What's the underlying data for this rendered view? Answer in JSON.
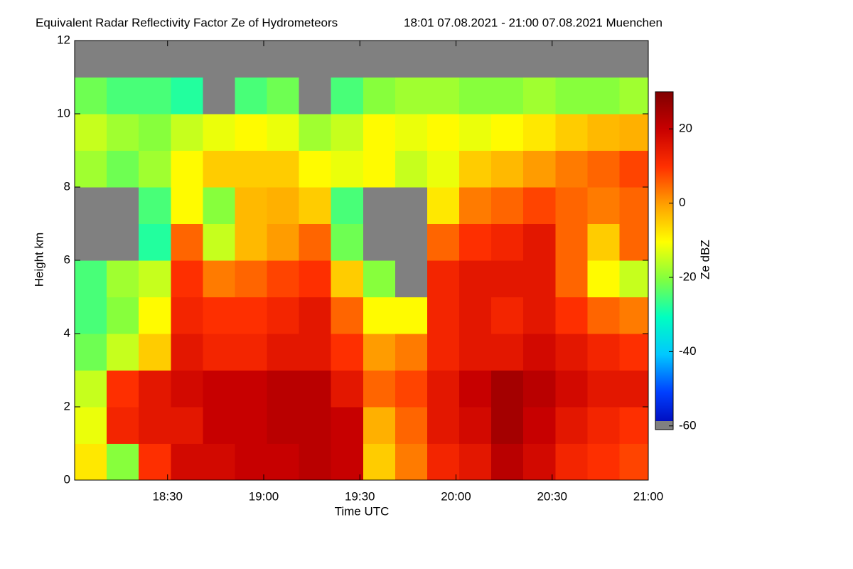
{
  "chart_data": {
    "type": "heatmap",
    "title": "Equivalent Radar Reflectivity Factor Ze of Hydrometeors",
    "subtitle": "18:01 07.08.2021 - 21:00 07.08.2021 Muenchen",
    "xlabel": "Time UTC",
    "ylabel": "Height km",
    "colorbar_label": "Ze dBZ",
    "xlim": [
      1081,
      1260
    ],
    "xticks": [
      {
        "value": 1110,
        "label": "18:30"
      },
      {
        "value": 1140,
        "label": "19:00"
      },
      {
        "value": 1170,
        "label": "19:30"
      },
      {
        "value": 1200,
        "label": "20:00"
      },
      {
        "value": 1230,
        "label": "20:30"
      },
      {
        "value": 1260,
        "label": "21:00"
      }
    ],
    "ylim": [
      0,
      12
    ],
    "yticks": [
      0,
      2,
      4,
      6,
      8,
      10,
      12
    ],
    "zlim": [
      -61,
      30
    ],
    "zticks": [
      -60,
      -40,
      -20,
      0,
      20
    ],
    "x": [
      1086,
      1096,
      1106,
      1116,
      1126,
      1136,
      1146,
      1156,
      1166,
      1176,
      1186,
      1196,
      1206,
      1216,
      1226,
      1236,
      1246,
      1256
    ],
    "y": [
      0.5,
      1.5,
      2.5,
      3.5,
      4.5,
      5.5,
      6.5,
      7.5,
      8.5,
      9.5,
      10.5,
      11.5
    ],
    "colorscale": [
      "#0000b0",
      "#0040ff",
      "#00c8ff",
      "#00ffc0",
      "#80ff40",
      "#ffff00",
      "#ffa000",
      "#ff3000",
      "#c80000",
      "#800000"
    ],
    "missing_color": "#808080",
    "values": [
      [
        -8,
        -20,
        10,
        18,
        18,
        20,
        20,
        22,
        20,
        -5,
        3,
        12,
        15,
        22,
        18,
        12,
        10,
        8
      ],
      [
        -12,
        12,
        15,
        15,
        20,
        20,
        22,
        22,
        20,
        -2,
        5,
        15,
        18,
        25,
        20,
        15,
        12,
        10
      ],
      [
        -15,
        10,
        15,
        18,
        20,
        20,
        22,
        22,
        15,
        5,
        8,
        15,
        20,
        25,
        22,
        18,
        15,
        15
      ],
      [
        -22,
        -15,
        -5,
        15,
        12,
        12,
        15,
        15,
        10,
        0,
        3,
        12,
        15,
        15,
        18,
        15,
        12,
        10
      ],
      [
        -25,
        -20,
        -10,
        12,
        10,
        10,
        12,
        15,
        5,
        -10,
        -10,
        12,
        15,
        12,
        15,
        10,
        5,
        3
      ],
      [
        -25,
        -18,
        -15,
        10,
        3,
        5,
        8,
        10,
        -5,
        -20,
        null,
        12,
        15,
        15,
        15,
        5,
        -10,
        -15
      ],
      [
        null,
        null,
        -28,
        5,
        -15,
        -3,
        0,
        5,
        -22,
        null,
        null,
        5,
        10,
        12,
        15,
        5,
        -5,
        5
      ],
      [
        null,
        null,
        -25,
        -10,
        -20,
        -3,
        -2,
        -5,
        -25,
        null,
        null,
        -8,
        3,
        5,
        8,
        5,
        3,
        5
      ],
      [
        -18,
        -22,
        -18,
        -10,
        -5,
        -5,
        -5,
        -10,
        -12,
        -10,
        -15,
        -12,
        -5,
        -3,
        0,
        3,
        5,
        8
      ],
      [
        -15,
        -18,
        -20,
        -15,
        -12,
        -10,
        -12,
        -18,
        -15,
        -10,
        -12,
        -10,
        -12,
        -10,
        -8,
        -5,
        -3,
        -2
      ],
      [
        -22,
        -25,
        -25,
        -28,
        null,
        -25,
        -22,
        null,
        -25,
        -20,
        -18,
        -18,
        -20,
        -20,
        -18,
        -20,
        -20,
        -18
      ],
      [
        null,
        null,
        null,
        null,
        null,
        null,
        null,
        null,
        null,
        null,
        null,
        null,
        null,
        null,
        null,
        null,
        null,
        null
      ]
    ]
  }
}
